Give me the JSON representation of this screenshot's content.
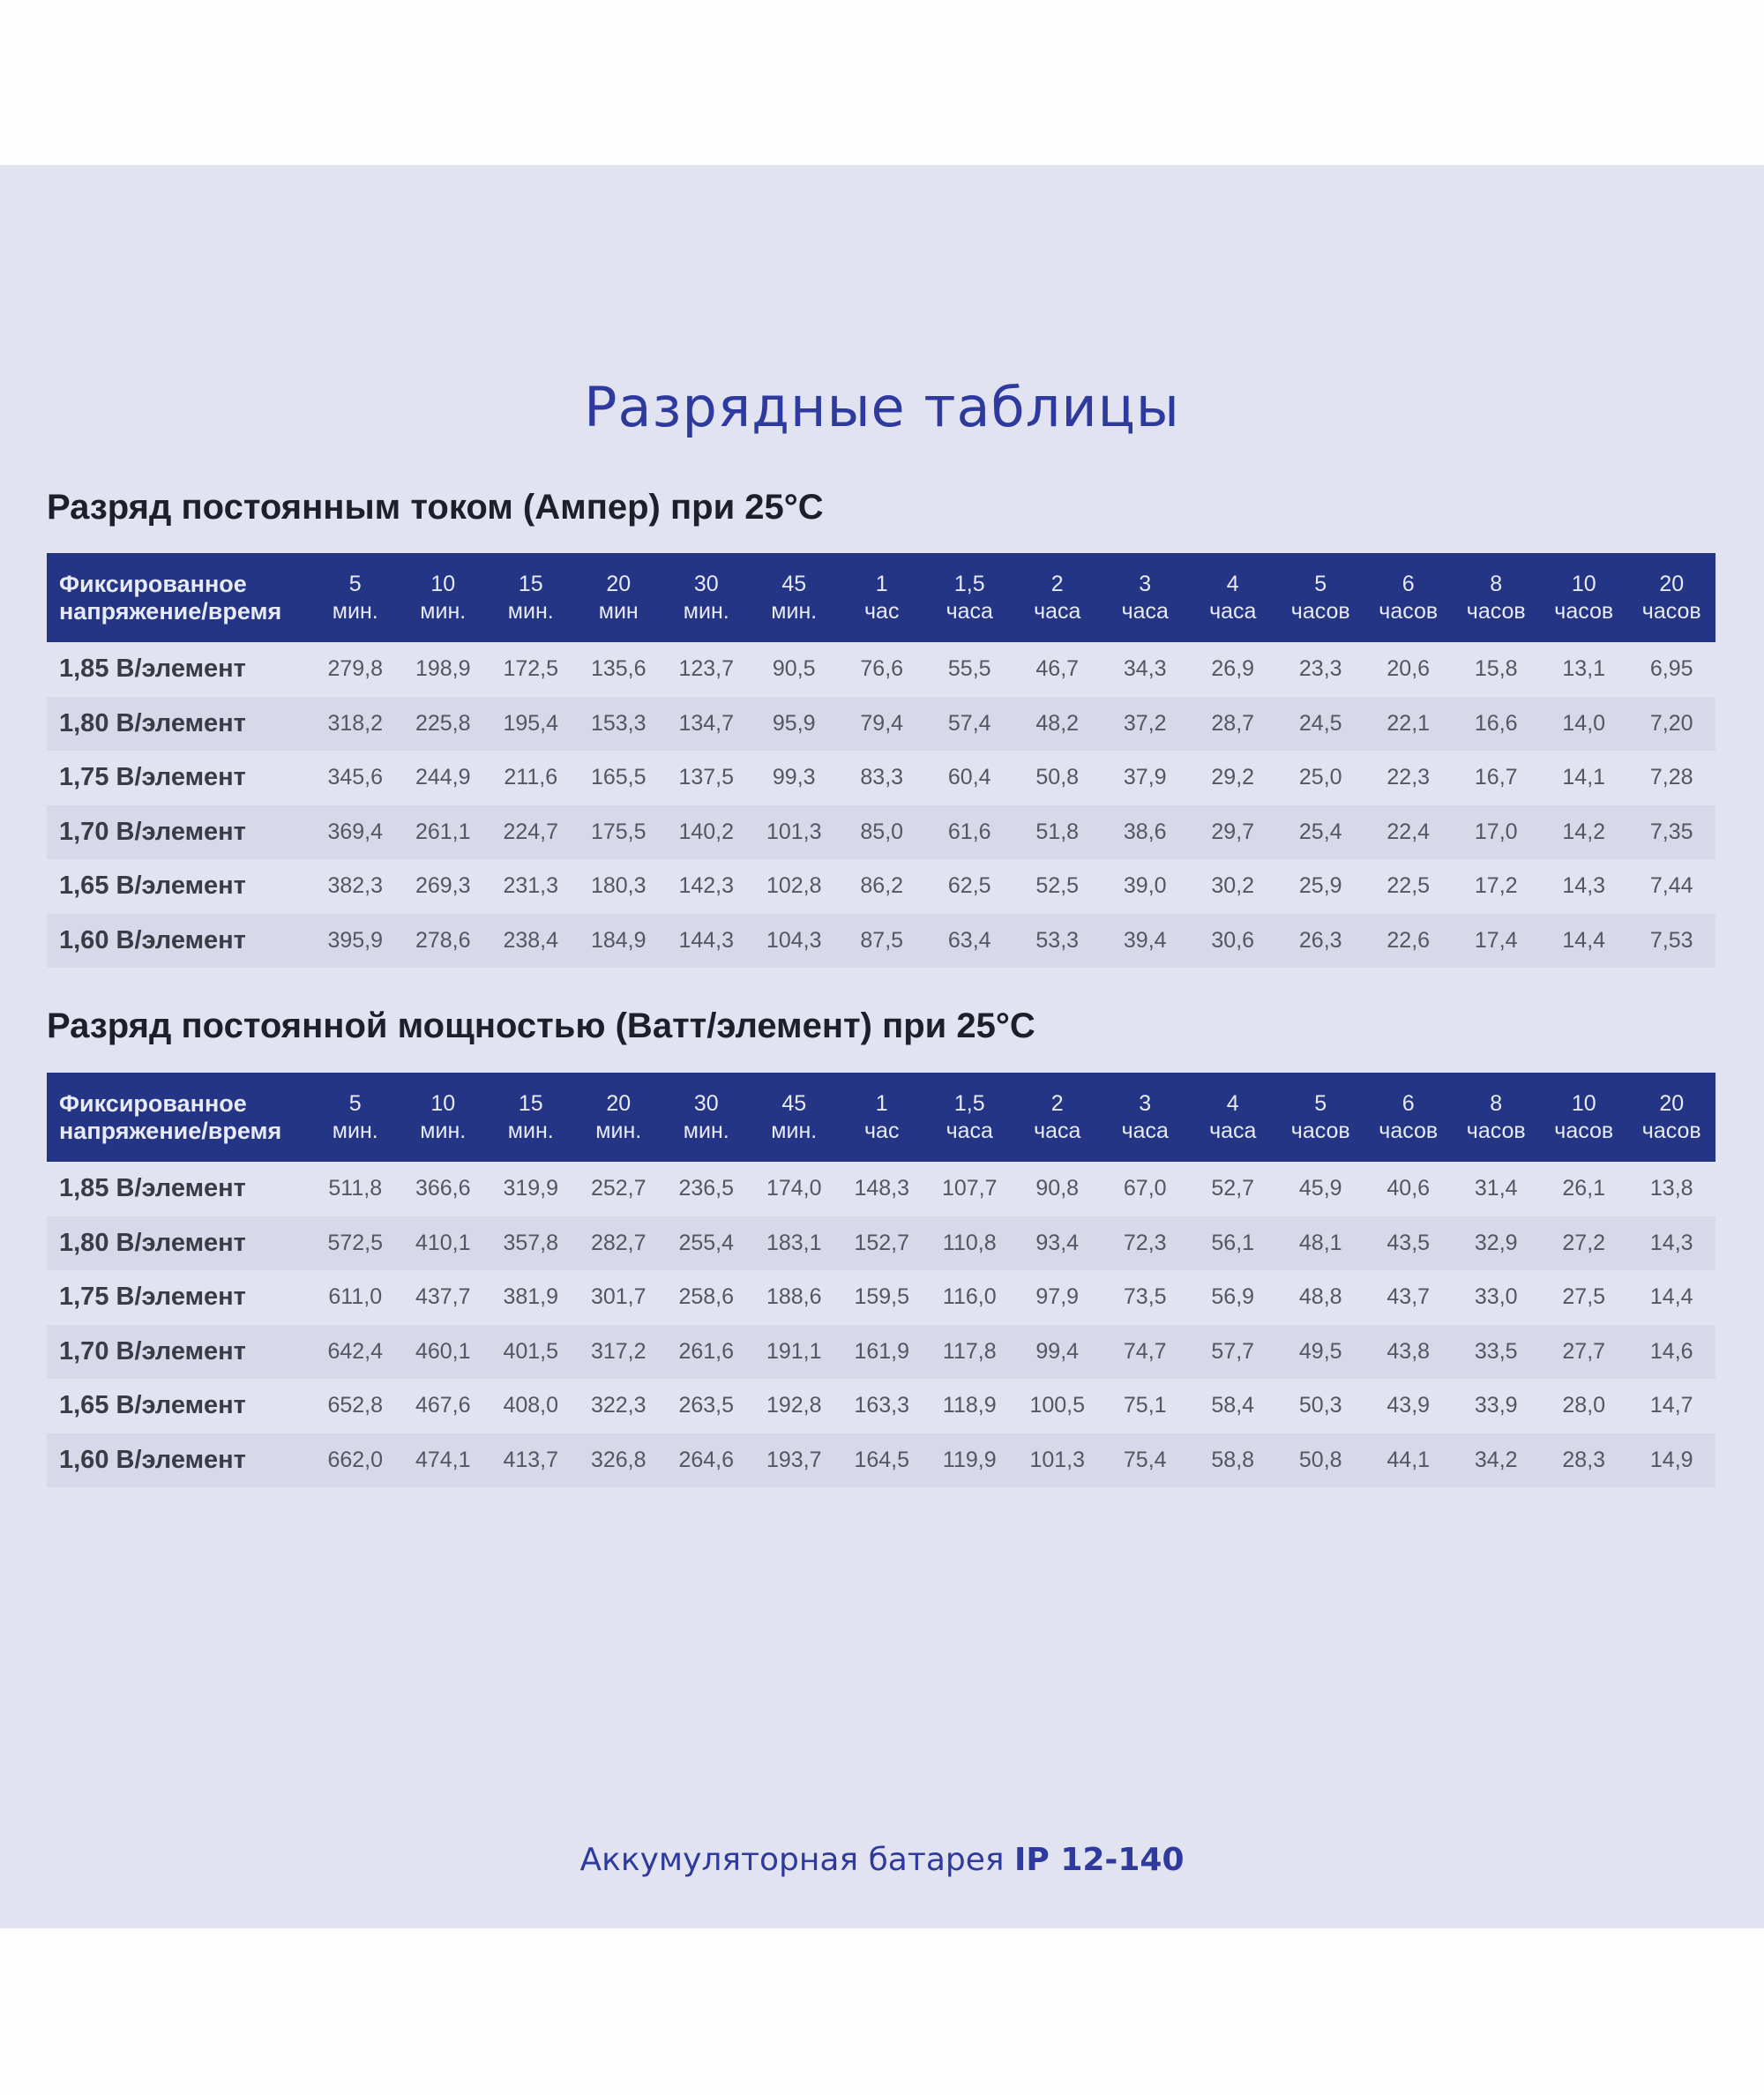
{
  "title": "Разрядные таблицы",
  "headers": [
    "Фиксированное|напряжение/время",
    "5|мин.",
    "10|мин.",
    "15|мин.",
    "20|мин",
    "30|мин.",
    "45|мин.",
    "1|час",
    "1,5|часа",
    "2|часа",
    "3|часа",
    "4|часа",
    "5|часов",
    "6|часов",
    "8|часов",
    "10|часов",
    "20|часов"
  ],
  "tables": [
    {
      "heading": "Разряд постоянным током (Ампер) при 25°C",
      "headers": [
        "Фиксированное|напряжение/время",
        "5|мин.",
        "10|мин.",
        "15|мин.",
        "20|мин",
        "30|мин.",
        "45|мин.",
        "1|час",
        "1,5|часа",
        "2|часа",
        "3|часа",
        "4|часа",
        "5|часов",
        "6|часов",
        "8|часов",
        "10|часов",
        "20|часов"
      ],
      "rows": [
        [
          "1,85 В/элемент",
          "279,8",
          "198,9",
          "172,5",
          "135,6",
          "123,7",
          "90,5",
          "76,6",
          "55,5",
          "46,7",
          "34,3",
          "26,9",
          "23,3",
          "20,6",
          "15,8",
          "13,1",
          "6,95"
        ],
        [
          "1,80 В/элемент",
          "318,2",
          "225,8",
          "195,4",
          "153,3",
          "134,7",
          "95,9",
          "79,4",
          "57,4",
          "48,2",
          "37,2",
          "28,7",
          "24,5",
          "22,1",
          "16,6",
          "14,0",
          "7,20"
        ],
        [
          "1,75 В/элемент",
          "345,6",
          "244,9",
          "211,6",
          "165,5",
          "137,5",
          "99,3",
          "83,3",
          "60,4",
          "50,8",
          "37,9",
          "29,2",
          "25,0",
          "22,3",
          "16,7",
          "14,1",
          "7,28"
        ],
        [
          "1,70 В/элемент",
          "369,4",
          "261,1",
          "224,7",
          "175,5",
          "140,2",
          "101,3",
          "85,0",
          "61,6",
          "51,8",
          "38,6",
          "29,7",
          "25,4",
          "22,4",
          "17,0",
          "14,2",
          "7,35"
        ],
        [
          "1,65 В/элемент",
          "382,3",
          "269,3",
          "231,3",
          "180,3",
          "142,3",
          "102,8",
          "86,2",
          "62,5",
          "52,5",
          "39,0",
          "30,2",
          "25,9",
          "22,5",
          "17,2",
          "14,3",
          "7,44"
        ],
        [
          "1,60 В/элемент",
          "395,9",
          "278,6",
          "238,4",
          "184,9",
          "144,3",
          "104,3",
          "87,5",
          "63,4",
          "53,3",
          "39,4",
          "30,6",
          "26,3",
          "22,6",
          "17,4",
          "14,4",
          "7,53"
        ]
      ]
    },
    {
      "heading": "Разряд постоянной мощностью (Ватт/элемент) при 25°C",
      "headers": [
        "Фиксированное|напряжение/время",
        "5|мин.",
        "10|мин.",
        "15|мин.",
        "20|мин.",
        "30|мин.",
        "45|мин.",
        "1|час",
        "1,5|часа",
        "2|часа",
        "3|часа",
        "4|часа",
        "5|часов",
        "6|часов",
        "8|часов",
        "10|часов",
        "20|часов"
      ],
      "rows": [
        [
          "1,85 В/элемент",
          "511,8",
          "366,6",
          "319,9",
          "252,7",
          "236,5",
          "174,0",
          "148,3",
          "107,7",
          "90,8",
          "67,0",
          "52,7",
          "45,9",
          "40,6",
          "31,4",
          "26,1",
          "13,8"
        ],
        [
          "1,80 В/элемент",
          "572,5",
          "410,1",
          "357,8",
          "282,7",
          "255,4",
          "183,1",
          "152,7",
          "110,8",
          "93,4",
          "72,3",
          "56,1",
          "48,1",
          "43,5",
          "32,9",
          "27,2",
          "14,3"
        ],
        [
          "1,75 В/элемент",
          "611,0",
          "437,7",
          "381,9",
          "301,7",
          "258,6",
          "188,6",
          "159,5",
          "116,0",
          "97,9",
          "73,5",
          "56,9",
          "48,8",
          "43,7",
          "33,0",
          "27,5",
          "14,4"
        ],
        [
          "1,70 В/элемент",
          "642,4",
          "460,1",
          "401,5",
          "317,2",
          "261,6",
          "191,1",
          "161,9",
          "117,8",
          "99,4",
          "74,7",
          "57,7",
          "49,5",
          "43,8",
          "33,5",
          "27,7",
          "14,6"
        ],
        [
          "1,65 В/элемент",
          "652,8",
          "467,6",
          "408,0",
          "322,3",
          "263,5",
          "192,8",
          "163,3",
          "118,9",
          "100,5",
          "75,1",
          "58,4",
          "50,3",
          "43,9",
          "33,9",
          "28,0",
          "14,7"
        ],
        [
          "1,60 В/элемент",
          "662,0",
          "474,1",
          "413,7",
          "326,8",
          "264,6",
          "193,7",
          "164,5",
          "119,9",
          "101,3",
          "75,4",
          "58,8",
          "50,8",
          "44,1",
          "34,2",
          "28,3",
          "14,9"
        ]
      ]
    }
  ],
  "footer": {
    "prefix": "Аккумуляторная батарея ",
    "model": "IP 12-140"
  },
  "colors": {
    "header_bg": "#233584",
    "title": "#2e3a9e",
    "background": "#e2e3f0",
    "row_alt": "#d7d8e9"
  }
}
